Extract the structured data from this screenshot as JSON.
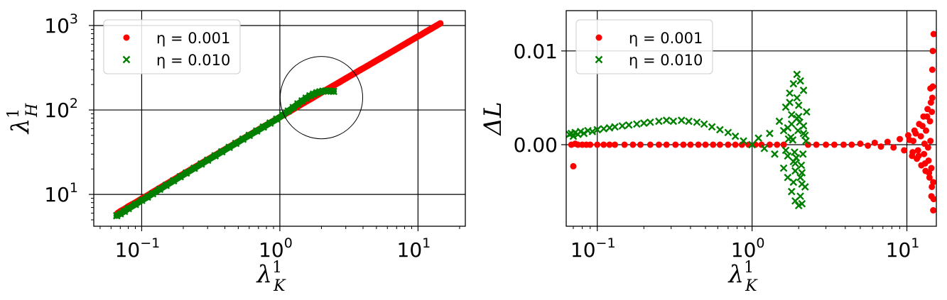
{
  "chart_data": [
    {
      "type": "scatter",
      "xscale": "log",
      "yscale": "log",
      "xlim": [
        0.045,
        22
      ],
      "ylim": [
        4.2,
        1500
      ],
      "grid": true,
      "legend": "top-left",
      "xlabel": "λ",
      "xlabel_sup": "1",
      "xlabel_sub": "K",
      "ylabel": "λ",
      "ylabel_sup": "1",
      "ylabel_sub": "H",
      "xticks": [
        {
          "value": 0.1,
          "base": "10",
          "exp": "−1"
        },
        {
          "value": 1,
          "base": "10",
          "exp": "0"
        },
        {
          "value": 10,
          "base": "10",
          "exp": "1"
        }
      ],
      "yticks": [
        {
          "value": 10,
          "base": "10",
          "exp": "1"
        },
        {
          "value": 100,
          "base": "10",
          "exp": "2"
        },
        {
          "value": 1000,
          "base": "10",
          "exp": "3"
        }
      ],
      "annotation": {
        "shape": "circle",
        "center": [
          2.0,
          140
        ],
        "radius_x_log_decades": 0.17
      },
      "series": [
        {
          "name": "η = 0.001",
          "marker": "circle",
          "color": "#ff0000",
          "x": [
            0.067,
            0.07,
            0.075,
            0.08,
            0.09,
            0.1,
            0.11,
            0.12,
            0.135,
            0.15,
            0.17,
            0.19,
            0.21,
            0.24,
            0.27,
            0.3,
            0.34,
            0.38,
            0.43,
            0.48,
            0.54,
            0.6,
            0.68,
            0.76,
            0.85,
            0.95,
            1.05,
            1.2,
            1.35,
            1.5,
            1.7,
            1.9,
            2.1,
            2.4,
            2.7,
            3.0,
            3.4,
            3.8,
            4.3,
            4.8,
            5.4,
            6.0,
            6.8,
            7.6,
            8.5,
            9.5,
            10.5,
            11.5,
            12.5,
            13.5,
            14.5
          ],
          "y": [
            6.0,
            6.3,
            6.7,
            7.2,
            8.0,
            8.9,
            9.7,
            10.6,
            11.9,
            13.2,
            14.9,
            16.6,
            18.3,
            20.8,
            23.3,
            25.8,
            29.1,
            32.4,
            36.5,
            40.6,
            45.5,
            50.4,
            56.8,
            63.2,
            70.4,
            78.3,
            86.2,
            98.0,
            110,
            122,
            137,
            153,
            168,
            191,
            213,
            236,
            266,
            296,
            332,
            369,
            413,
            457,
            514,
            572,
            637,
            708,
            778,
            849,
            919,
            989,
            1060
          ]
        },
        {
          "name": "η = 0.010",
          "marker": "x",
          "color": "#008000",
          "x": [
            0.066,
            0.07,
            0.075,
            0.08,
            0.09,
            0.1,
            0.11,
            0.12,
            0.135,
            0.15,
            0.17,
            0.19,
            0.21,
            0.24,
            0.27,
            0.3,
            0.34,
            0.38,
            0.43,
            0.48,
            0.54,
            0.6,
            0.68,
            0.76,
            0.85,
            0.95,
            1.05,
            1.15,
            1.25,
            1.35,
            1.45,
            1.55,
            1.65,
            1.75,
            1.85,
            1.95,
            2.05,
            2.15,
            2.25,
            2.35,
            2.45
          ],
          "y": [
            5.6,
            5.9,
            6.3,
            6.8,
            7.6,
            8.5,
            9.3,
            10.2,
            11.5,
            12.8,
            14.5,
            16.2,
            17.9,
            20.4,
            22.9,
            25.4,
            28.7,
            32.0,
            36.1,
            40.2,
            45.1,
            50.0,
            56.4,
            62.8,
            70.0,
            77.9,
            87.0,
            97,
            107,
            118,
            128,
            138,
            147,
            154,
            160,
            164,
            167,
            168,
            168,
            167,
            166
          ]
        }
      ]
    },
    {
      "type": "scatter",
      "xscale": "log",
      "yscale": "linear",
      "xlim": [
        0.063,
        15.5
      ],
      "ylim": [
        -0.0087,
        0.0143
      ],
      "grid": true,
      "legend": "top-left",
      "xlabel": "λ",
      "xlabel_sup": "1",
      "xlabel_sub": "K",
      "ylabel": "ΔL",
      "xticks": [
        {
          "value": 0.1,
          "base": "10",
          "exp": "−1"
        },
        {
          "value": 1,
          "base": "10",
          "exp": "0"
        },
        {
          "value": 10,
          "base": "10",
          "exp": "1"
        }
      ],
      "yticks": [
        {
          "value": 0.0,
          "label": "0.00"
        },
        {
          "value": 0.01,
          "label": "0.01"
        }
      ],
      "series": [
        {
          "name": "η = 0.001",
          "marker": "circle",
          "color": "#ff0000",
          "x": [
            0.068,
            0.07,
            0.072,
            0.075,
            0.08,
            0.085,
            0.09,
            0.1,
            0.11,
            0.12,
            0.13,
            0.15,
            0.17,
            0.19,
            0.22,
            0.25,
            0.28,
            0.32,
            0.36,
            0.4,
            0.45,
            0.5,
            0.56,
            0.62,
            0.7,
            0.78,
            0.86,
            0.95,
            1.05,
            1.15,
            1.3,
            1.45,
            1.6,
            2.3,
            2.6,
            3.0,
            3.4,
            3.9,
            4.4,
            5.0,
            5.6,
            6.2,
            6.8,
            7.5,
            8.2,
            9.0,
            9.6,
            10.2,
            10.8,
            11.2,
            11.6,
            12.0,
            12.4,
            12.8,
            13.2,
            13.6,
            14.0,
            14.3,
            14.5,
            14.7,
            14.9,
            10.4,
            10.9,
            11.4,
            11.9,
            12.6,
            13.1,
            13.5,
            13.9,
            14.2,
            14.4,
            14.6,
            14.8,
            14.9,
            11.0,
            11.8,
            12.3,
            12.9,
            13.3,
            13.8,
            14.1,
            14.4,
            14.6,
            14.8,
            13.0,
            13.7,
            14.2,
            14.5,
            14.7
          ],
          "y": [
            0.0,
            -0.0023,
            0.0001,
            0.0,
            0.0,
            0.0,
            0.0,
            0.0,
            0.0,
            0.0,
            0.0,
            0.0,
            0.0,
            0.0,
            0.0,
            0.0,
            0.0,
            0.0,
            0.0,
            0.0,
            0.0,
            0.0,
            0.0,
            0.0,
            0.0,
            0.0,
            0.0,
            0.0,
            0.0,
            0.0,
            0.0,
            0.0,
            0.0,
            0.0,
            0.0,
            0.0,
            0.0,
            0.0,
            0.0,
            0.0001,
            -0.0001,
            0.0002,
            -0.0002,
            0.0003,
            -0.0003,
            0.0006,
            -0.0006,
            0.001,
            -0.0012,
            0.0015,
            -0.0015,
            0.0022,
            -0.0022,
            0.003,
            -0.0028,
            0.0038,
            -0.0035,
            0.0045,
            -0.0045,
            0.0062,
            -0.0058,
            0.0005,
            -0.0008,
            0.0012,
            -0.0012,
            0.002,
            -0.002,
            0.003,
            -0.003,
            0.006,
            -0.0055,
            0.008,
            -0.007,
            0.0118,
            0.0004,
            -0.0006,
            0.0009,
            -0.001,
            0.0015,
            -0.0017,
            0.0025,
            -0.0025,
            0.005,
            -0.004,
            0.0001,
            -0.0003,
            0.0004,
            0.0035,
            0.01
          ]
        },
        {
          "name": "η = 0.010",
          "marker": "x",
          "color": "#008000",
          "x": [
            0.066,
            0.068,
            0.07,
            0.072,
            0.075,
            0.078,
            0.082,
            0.087,
            0.093,
            0.1,
            0.11,
            0.12,
            0.13,
            0.145,
            0.16,
            0.18,
            0.2,
            0.22,
            0.25,
            0.28,
            0.31,
            0.35,
            0.39,
            0.44,
            0.49,
            0.55,
            0.62,
            0.7,
            0.78,
            0.88,
            1.0,
            1.1,
            1.2,
            1.3,
            1.4,
            1.5,
            1.6,
            1.65,
            1.7,
            1.75,
            1.8,
            1.85,
            1.9,
            1.95,
            2.0,
            2.05,
            2.1,
            2.15,
            2.2,
            2.25,
            1.6,
            1.7,
            1.8,
            1.9,
            2.0,
            2.1,
            2.2,
            1.75,
            1.85,
            1.95,
            2.05,
            2.15,
            1.65,
            1.8,
            1.9,
            2.0,
            2.1,
            1.7,
            1.85,
            1.95,
            2.05,
            2.15,
            1.78,
            1.88,
            1.98,
            2.08,
            1.72,
            1.83,
            1.93,
            2.03,
            2.13,
            2.23
          ],
          "y": [
            0.0011,
            0.0012,
            0.0009,
            0.0013,
            0.0011,
            0.0014,
            0.0012,
            0.0015,
            0.0014,
            0.0016,
            0.0017,
            0.0018,
            0.0019,
            0.002,
            0.0021,
            0.0022,
            0.0023,
            0.0024,
            0.0025,
            0.0026,
            0.0025,
            0.0026,
            0.0025,
            0.0024,
            0.0022,
            0.0019,
            0.0016,
            0.0013,
            0.0009,
            0.0004,
            0.0,
            0.0007,
            -0.0004,
            0.0012,
            -0.001,
            0.0025,
            -0.0025,
            0.004,
            -0.0035,
            0.0055,
            -0.005,
            0.0065,
            -0.006,
            0.0075,
            -0.0065,
            0.0068,
            -0.0063,
            0.0058,
            -0.0045,
            0.0035,
            0.0015,
            -0.0012,
            0.0022,
            -0.002,
            0.003,
            -0.003,
            0.001,
            0.0045,
            -0.004,
            0.005,
            -0.0055,
            0.002,
            -0.0006,
            0.0032,
            -0.0028,
            0.0042,
            -0.0042,
            0.0018,
            -0.0018,
            0.0028,
            -0.0035,
            0.0012,
            0.0008,
            -0.0008,
            0.0015,
            -0.0022,
            0.0006,
            0.0005,
            -0.0014,
            0.0024,
            -0.001,
            0.0004
          ]
        }
      ]
    }
  ]
}
